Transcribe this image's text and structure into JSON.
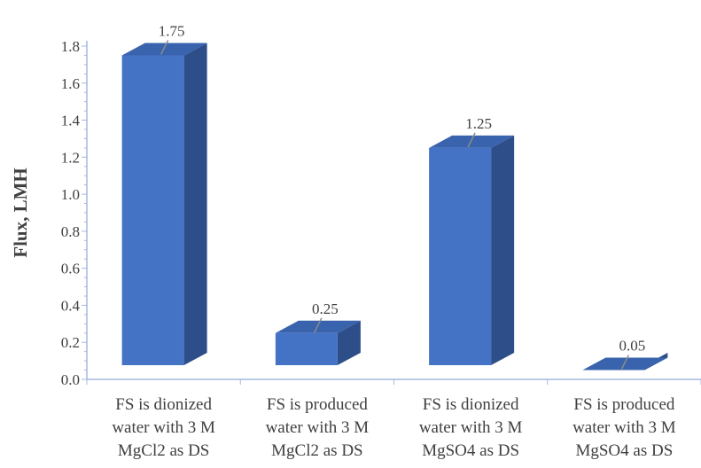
{
  "chart_data": {
    "type": "bar",
    "style": "3d-column",
    "categories": [
      [
        "FS is dionized",
        "water with 3 M",
        "MgCl2 as DS"
      ],
      [
        "FS is produced",
        "water with 3 M",
        "MgCl2 as DS"
      ],
      [
        "FS is dionized",
        "water with 3 M",
        "MgSO4 as DS"
      ],
      [
        "FS is produced",
        "water with 3 M",
        "MgSO4 as DS"
      ]
    ],
    "values": [
      1.75,
      0.25,
      1.25,
      0.05
    ],
    "data_labels": [
      "1.75",
      "0.25",
      "1.25",
      "0.05"
    ],
    "ylabel": "Flux, LMH",
    "xlabel": "",
    "ylim": [
      0,
      1.8
    ],
    "yticks": [
      "0.0",
      "0.2",
      "0.4",
      "0.6",
      "0.8",
      "1.0",
      "1.2",
      "1.4",
      "1.6",
      "1.8"
    ],
    "grid": false,
    "colors": {
      "front": "#4472C4",
      "side": "#2D4E89",
      "top": "#3A63AD",
      "axis": "#A6B8DE",
      "text": "#404040",
      "leader": "#8C8C8C"
    }
  }
}
